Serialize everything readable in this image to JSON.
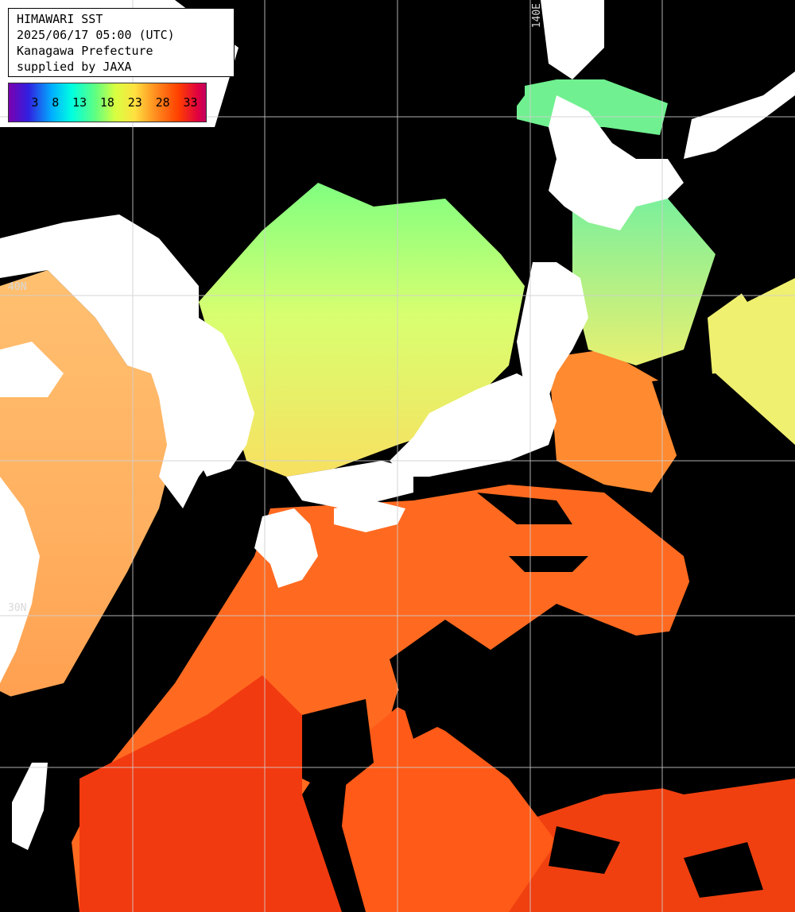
{
  "header": {
    "line1": "HIMAWARI SST",
    "line2": "2025/06/17 05:00 (UTC)",
    "line3": "Kanagawa Prefecture",
    "line4": "supplied by JAXA"
  },
  "color_scale": {
    "ticks": [
      "3",
      "8",
      "13",
      "18",
      "23",
      "28",
      "33"
    ],
    "colors": [
      "#7a00b0",
      "#3020e0",
      "#00b0ff",
      "#00ffe0",
      "#60ff80",
      "#d8ff40",
      "#ffe040",
      "#ff9020",
      "#ff4000",
      "#e00040",
      "#c00060"
    ]
  },
  "grid_labels": {
    "lon_140": "140E",
    "lat_40": "40N",
    "lat_30": "30N"
  },
  "map_colors": {
    "land": "#ffffff",
    "cloud": "#000000",
    "cool_water": "#90ff70",
    "cold_water": "#40e8c0",
    "mid_water": "#e8ff70",
    "warm_water": "#ffc060",
    "hot_water": "#ff6020",
    "hottest_water": "#f03010",
    "grid": "#d0d0d0"
  }
}
